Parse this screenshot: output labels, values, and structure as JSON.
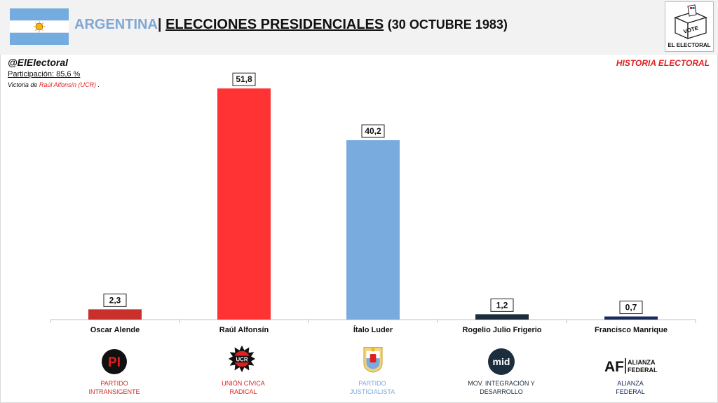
{
  "header": {
    "country": "ARGENTINA",
    "separator": "|",
    "title": "ELECCIONES PRESIDENCIALES",
    "date": "(30 OCTUBRE 1983)"
  },
  "logo": {
    "vote_label": "VOTE",
    "name": "EL ELECTORAL"
  },
  "source_handle": "@ElElectoral",
  "participation": "Participación: 85,6 %",
  "victory": {
    "prefix": "Victoria de ",
    "winner": "Raúl Alfonsín (UCR)",
    "suffix": " ."
  },
  "section_label": "HISTORIA ELECTORAL",
  "colors": {
    "pi": "#c9302c",
    "ucr": "#ff3333",
    "pj": "#7aabdf",
    "mid": "#1c2e3d",
    "af": "#1a2a5c"
  },
  "chart_data": {
    "type": "bar",
    "categories": [
      "Oscar Alende",
      "Raúl Alfonsín",
      "Ítalo Luder",
      "Rogelio Julio Frigerio",
      "Francisco Manrique"
    ],
    "values": [
      2.3,
      51.8,
      40.2,
      1.2,
      0.7
    ],
    "value_labels": [
      "2,3",
      "51,8",
      "40,2",
      "1,2",
      "0,7"
    ],
    "bar_colors": [
      "#c9302c",
      "#ff3333",
      "#7aabdf",
      "#1c2e3d",
      "#1a2a5c"
    ],
    "title": "",
    "xlabel": "",
    "ylabel": "",
    "ylim": [
      0,
      60
    ],
    "grid": false,
    "legend": "none"
  },
  "parties": [
    {
      "line1": "PARTIDO",
      "line2": "INTRANSIGENTE",
      "color": "#c9302c",
      "emblem_text": "PI",
      "icon": "pi-emblem-icon"
    },
    {
      "line1": "UNIÓN CÍVICA",
      "line2": "RADICAL",
      "color": "#e02020",
      "emblem_text": "UCR",
      "icon": "ucr-emblem-icon"
    },
    {
      "line1": "PARTIDO",
      "line2": "JUSTICIALISTA",
      "color": "#7aabdf",
      "emblem_text": "",
      "icon": "pj-emblem-icon"
    },
    {
      "line1": "MOV. INTEGRACIÓN Y",
      "line2": "DESARROLLO",
      "color": "#1c2e3d",
      "emblem_text": "mid",
      "icon": "mid-emblem-icon"
    },
    {
      "line1": "ALIANZA",
      "line2": "FEDERAL",
      "color": "#1a2a5c",
      "emblem_text": "AF",
      "emblem_sub1": "ALIANZA",
      "emblem_sub2": "FEDERAL",
      "icon": "af-emblem-icon"
    }
  ]
}
